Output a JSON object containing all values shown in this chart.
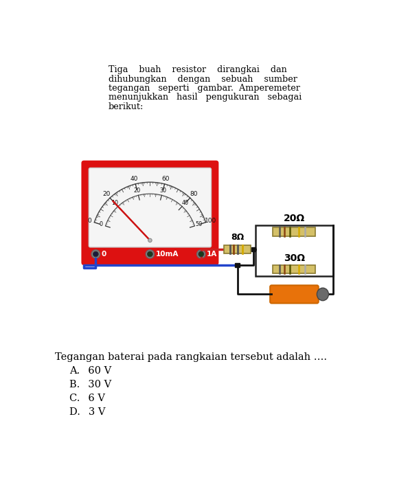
{
  "bg_color": "#ffffff",
  "paragraph_lines": [
    "Tiga    buah    resistor    dirangkai    dan",
    "dihubungkan    dengan    sebuah    sumber",
    "tegangan   seperti   gambar.  Amperemeter",
    "menunjukkan   hasil   pengukuran   sebagai",
    "berikut:"
  ],
  "question": "Tegangan baterai pada rangkaian tersebut adalah ….",
  "choices": [
    "A.  60 V",
    "B.  30 V",
    "C.  6 V",
    "D.  3 V"
  ],
  "meter_red": "#dd1111",
  "meter_face": "#f5f5f5",
  "needle_color": "#cc1111",
  "wire_blue": "#2244cc",
  "wire_red": "#cc2222",
  "resistor_body": "#d4c068",
  "resistor_edge": "#8a7a30",
  "resistor_label_8": "8Ω",
  "resistor_label_20": "20Ω",
  "resistor_label_30": "30Ω",
  "terminal_labels": [
    "0",
    "10mA",
    "1A"
  ],
  "outer_scale": [
    0,
    20,
    40,
    60,
    80,
    100
  ],
  "inner_scale": [
    0,
    10,
    20,
    30,
    40,
    50
  ],
  "battery_orange": "#e8720a",
  "battery_gray": "#6a6a6a",
  "wire_dark": "#111111"
}
